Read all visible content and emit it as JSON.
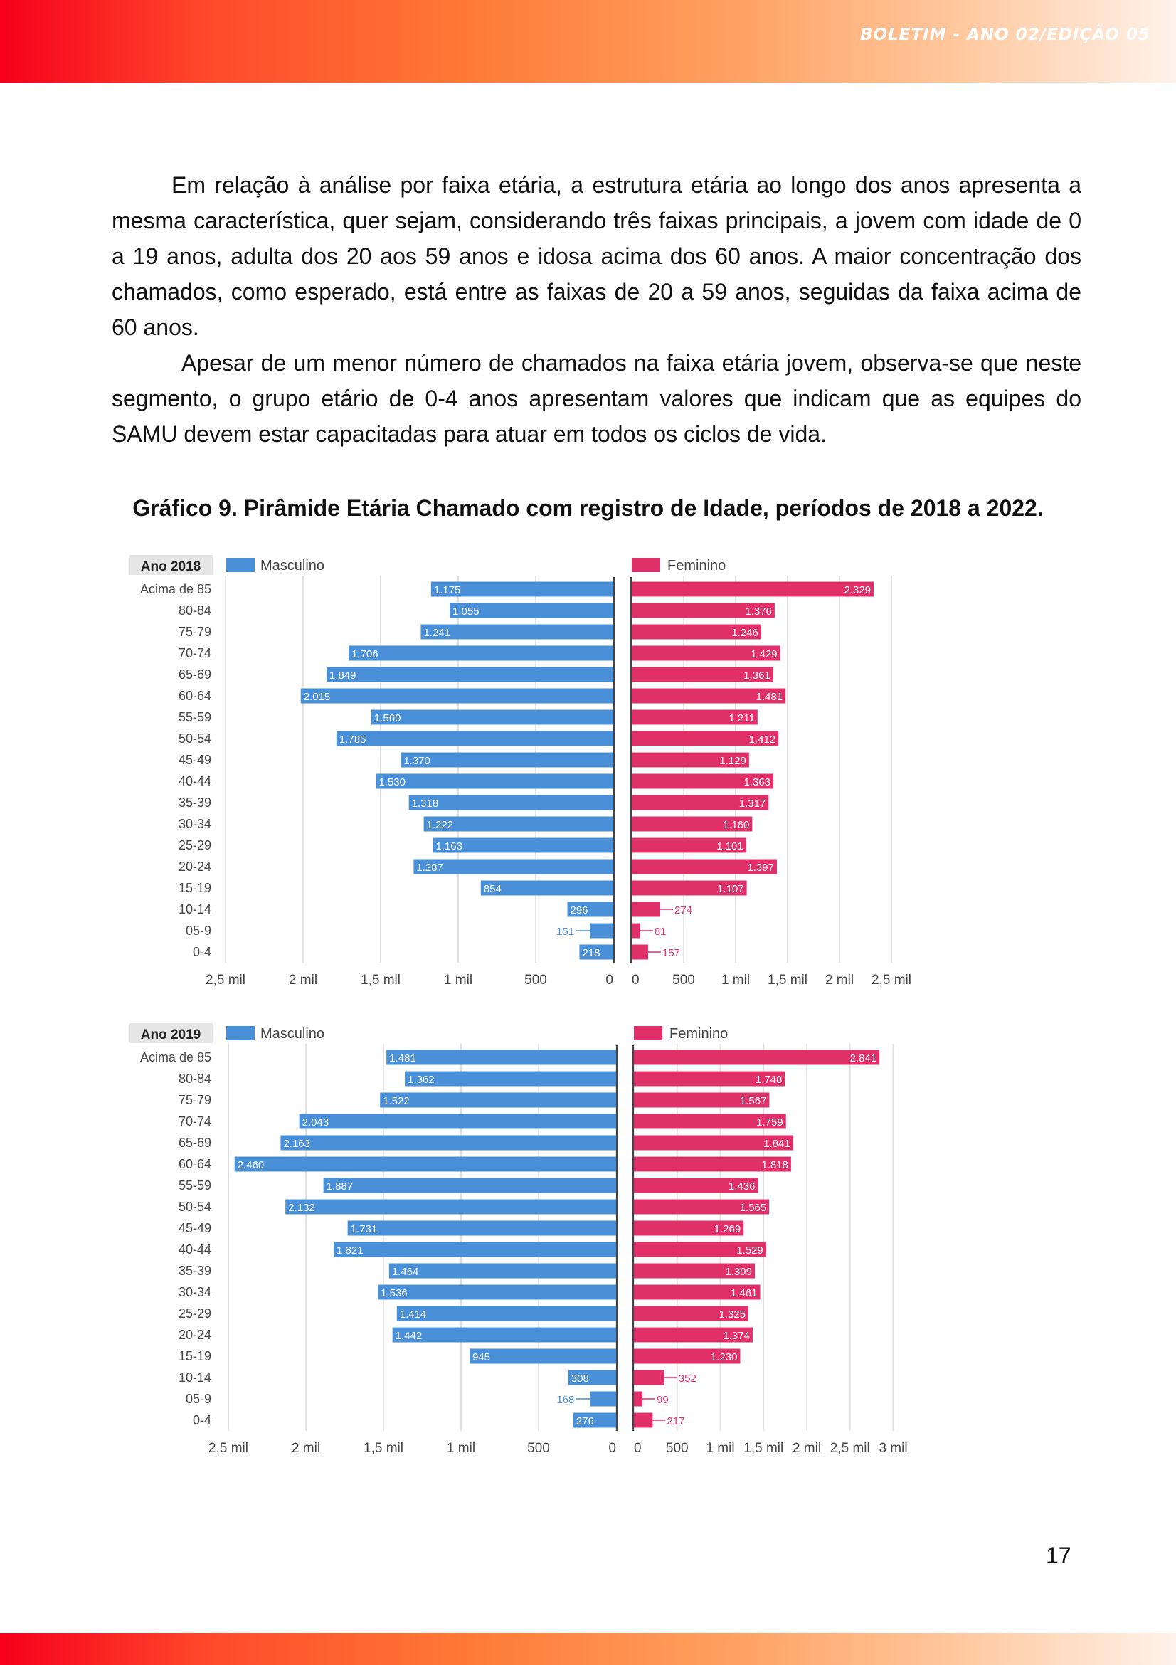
{
  "header": {
    "bulletin": "BOLETIM - ANO 02/EDIÇÃO 05"
  },
  "body": {
    "paragraph1": "Em relação à análise por faixa etária, a estrutura etária ao longo dos anos apresenta a mesma característica, quer sejam, considerando três faixas principais, a jovem com idade de 0 a 19 anos, adulta dos 20 aos 59 anos e idosa acima dos 60 anos. A maior concentração dos chamados, como esperado, está entre as faixas de 20 a 59 anos, seguidas da faixa acima de 60 anos.",
    "paragraph2": "Apesar de um menor número de chamados na faixa etária jovem, observa-se que neste segmento, o grupo etário de 0-4 anos apresentam valores que indicam que as equipes do SAMU devem estar capacitadas para atuar em todos os ciclos de vida."
  },
  "caption": "Gráfico 9. Pirâmide Etária Chamado com registro de Idade, períodos de 2018 a 2022.",
  "page_number": "17",
  "colors": {
    "male": "#4a90d9",
    "female": "#e0306a",
    "grid": "#e2e2e2",
    "axis_text": "#444444"
  },
  "chart_data": [
    {
      "type": "bar",
      "orientation": "horizontal-pyramid",
      "title": "Ano 2018",
      "categories": [
        "Acima de 85",
        "80-84",
        "75-79",
        "70-74",
        "65-69",
        "60-64",
        "55-59",
        "50-54",
        "45-49",
        "40-44",
        "35-39",
        "30-34",
        "25-29",
        "20-24",
        "15-19",
        "10-14",
        "05-9",
        "0-4"
      ],
      "series": [
        {
          "name": "Masculino",
          "values": [
            1175,
            1055,
            1241,
            1706,
            1849,
            2015,
            1560,
            1785,
            1370,
            1530,
            1318,
            1222,
            1163,
            1287,
            854,
            296,
            151,
            218
          ],
          "labels": [
            "1.175",
            "1.055",
            "1.241",
            "1.706",
            "1.849",
            "2.015",
            "1.560",
            "1.785",
            "1.370",
            "1.530",
            "1.318",
            "1.222",
            "1.163",
            "1.287",
            "854",
            "296",
            "151",
            "218"
          ]
        },
        {
          "name": "Feminino",
          "values": [
            2329,
            1376,
            1246,
            1429,
            1361,
            1481,
            1211,
            1412,
            1129,
            1363,
            1317,
            1160,
            1101,
            1397,
            1107,
            274,
            81,
            157
          ],
          "labels": [
            "2.329",
            "1.376",
            "1.246",
            "1.429",
            "1.361",
            "1.481",
            "1.211",
            "1.412",
            "1.129",
            "1.363",
            "1.317",
            "1.160",
            "1.101",
            "1.397",
            "1.107",
            "274",
            "81",
            "157"
          ]
        }
      ],
      "male_axis": {
        "ticks": [
          2500,
          2000,
          1500,
          1000,
          500,
          0
        ],
        "tick_labels": [
          "2,5 mil",
          "2 mil",
          "1,5 mil",
          "1 mil",
          "500",
          "0"
        ]
      },
      "female_axis": {
        "ticks": [
          0,
          500,
          1000,
          1500,
          2000,
          2500
        ],
        "tick_labels": [
          "0",
          "500",
          "1 mil",
          "1,5 mil",
          "2 mil",
          "2,5 mil"
        ]
      }
    },
    {
      "type": "bar",
      "orientation": "horizontal-pyramid",
      "title": "Ano 2019",
      "categories": [
        "Acima de 85",
        "80-84",
        "75-79",
        "70-74",
        "65-69",
        "60-64",
        "55-59",
        "50-54",
        "45-49",
        "40-44",
        "35-39",
        "30-34",
        "25-29",
        "20-24",
        "15-19",
        "10-14",
        "05-9",
        "0-4"
      ],
      "series": [
        {
          "name": "Masculino",
          "values": [
            1481,
            1362,
            1522,
            2043,
            2163,
            2460,
            1887,
            2132,
            1731,
            1821,
            1464,
            1536,
            1414,
            1442,
            945,
            308,
            168,
            276
          ],
          "labels": [
            "1.481",
            "1.362",
            "1.522",
            "2.043",
            "2.163",
            "2.460",
            "1.887",
            "2.132",
            "1.731",
            "1.821",
            "1.464",
            "1.536",
            "1.414",
            "1.442",
            "945",
            "308",
            "168",
            "276"
          ]
        },
        {
          "name": "Feminino",
          "values": [
            2841,
            1748,
            1567,
            1759,
            1841,
            1818,
            1436,
            1565,
            1269,
            1529,
            1399,
            1461,
            1325,
            1374,
            1230,
            352,
            99,
            217
          ],
          "labels": [
            "2.841",
            "1.748",
            "1.567",
            "1.759",
            "1.841",
            "1.818",
            "1.436",
            "1.565",
            "1.269",
            "1.529",
            "1.399",
            "1.461",
            "1.325",
            "1.374",
            "1.230",
            "352",
            "99",
            "217"
          ]
        }
      ],
      "male_axis": {
        "ticks": [
          2500,
          2000,
          1500,
          1000,
          500,
          0
        ],
        "tick_labels": [
          "2,5 mil",
          "2 mil",
          "1,5 mil",
          "1 mil",
          "500",
          "0"
        ]
      },
      "female_axis": {
        "ticks": [
          0,
          500,
          1000,
          1500,
          2000,
          2500,
          3000
        ],
        "tick_labels": [
          "0",
          "500",
          "1 mil",
          "1,5 mil",
          "2 mil",
          "2,5 mil",
          "3 mil"
        ]
      }
    }
  ]
}
